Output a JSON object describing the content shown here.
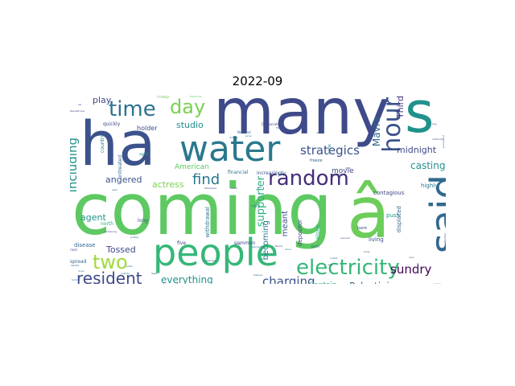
{
  "title": "2022-09",
  "words": [
    {
      "text": "coming",
      "color": "#5ec962"
    },
    {
      "text": "â",
      "color": "#6ccd5a"
    },
    {
      "text": "ha",
      "color": "#3b528b"
    },
    {
      "text": "many",
      "color": "#3e4a89"
    },
    {
      "text": "s",
      "color": "#21918c"
    },
    {
      "text": "people",
      "color": "#35b779"
    },
    {
      "text": "water",
      "color": "#2a788e"
    },
    {
      "text": "said",
      "color": "#31688e"
    },
    {
      "text": "electricity",
      "color": "#35b779"
    },
    {
      "text": "random",
      "color": "#472d7b"
    },
    {
      "text": "hour",
      "color": "#3b528b"
    },
    {
      "text": "time",
      "color": "#2c728e"
    },
    {
      "text": "day",
      "color": "#7ad151"
    },
    {
      "text": "two",
      "color": "#a0da39"
    },
    {
      "text": "resident",
      "color": "#3e4989"
    },
    {
      "text": "find",
      "color": "#2a788e"
    },
    {
      "text": "strategics",
      "color": "#3b528b"
    },
    {
      "text": "charging",
      "color": "#3b528b"
    },
    {
      "text": "including",
      "color": "#21918c"
    },
    {
      "text": "sundry",
      "color": "#440154"
    },
    {
      "text": "supporter",
      "color": "#2ab07f"
    },
    {
      "text": "Palestinians",
      "color": "#31688e"
    },
    {
      "text": "everything",
      "color": "#21918c"
    },
    {
      "text": "casting",
      "color": "#21918c"
    },
    {
      "text": "midnight",
      "color": "#3e4989"
    },
    {
      "text": "Third",
      "color": "#453781"
    },
    {
      "text": "Mavra",
      "color": "#31688e"
    },
    {
      "text": "actress",
      "color": "#7ad151"
    },
    {
      "text": "angered",
      "color": "#3b528b"
    },
    {
      "text": "studio",
      "color": "#21918c"
    },
    {
      "text": "play",
      "color": "#3e4989"
    },
    {
      "text": "Tossed",
      "color": "#3e4a89"
    },
    {
      "text": "agent",
      "color": "#21918c"
    },
    {
      "text": "meant",
      "color": "#3b528b"
    },
    {
      "text": "becoming",
      "color": "#2a788e"
    },
    {
      "text": "American",
      "color": "#5ec962"
    },
    {
      "text": "movie",
      "color": "#3e4989"
    },
    {
      "text": "Captain",
      "color": "#22a884"
    },
    {
      "text": "holder",
      "color": "#3e4a89"
    },
    {
      "text": "contagious",
      "color": "#3e4989"
    },
    {
      "text": "highly",
      "color": "#2a788e"
    },
    {
      "text": "displaced",
      "color": "#31688e"
    },
    {
      "text": "living",
      "color": "#3b528b"
    },
    {
      "text": "push",
      "color": "#21918c"
    },
    {
      "text": "alone",
      "color": "#2ab07f"
    },
    {
      "text": "depositor",
      "color": "#414487"
    },
    {
      "text": "rely",
      "color": "#21918c"
    },
    {
      "text": "long",
      "color": "#3b528b"
    },
    {
      "text": "disease",
      "color": "#31688e"
    },
    {
      "text": "north",
      "color": "#2ab07f"
    },
    {
      "text": "spread",
      "color": "#31688e"
    },
    {
      "text": "decade",
      "color": "#2a788e"
    },
    {
      "text": "five",
      "color": "#3e4989"
    },
    {
      "text": "river",
      "color": "#bddf26"
    },
    {
      "text": "withdrawal",
      "color": "#2a788e"
    },
    {
      "text": "common",
      "color": "#3e4989"
    },
    {
      "text": "quickly",
      "color": "#3e4989"
    },
    {
      "text": "country",
      "color": "#2a788e"
    },
    {
      "text": "untreated",
      "color": "#31688e"
    },
    {
      "text": "financial",
      "color": "#2a788e"
    },
    {
      "text": "increasingly",
      "color": "#3b528b"
    },
    {
      "text": "freeze",
      "color": "#31688e"
    },
    {
      "text": "crisis",
      "color": "#3e4989"
    },
    {
      "text": "bank",
      "color": "#3b528b"
    },
    {
      "text": "brink",
      "color": "#2a788e"
    },
    {
      "text": "Friday",
      "color": "#7ad151"
    },
    {
      "text": "port",
      "color": "#31688e"
    },
    {
      "text": "rival",
      "color": "#3e4989"
    },
    {
      "text": "agent",
      "color": "#21918c"
    },
    {
      "text": "Electricity",
      "color": "#5ec962"
    },
    {
      "text": "Republicans",
      "color": "#3e4989"
    },
    {
      "text": "National",
      "color": "#31688e"
    },
    {
      "text": "Democratic",
      "color": "#3e4989"
    },
    {
      "text": "authority",
      "color": "#3b528b"
    },
    {
      "text": "apologised",
      "color": "#2a788e"
    },
    {
      "text": "drifting",
      "color": "#31688e"
    },
    {
      "text": "gone",
      "color": "#2a788e"
    },
    {
      "text": "Witnesses",
      "color": "#3e4989"
    },
    {
      "text": "aware",
      "color": "#3b528b"
    },
    {
      "text": "seen",
      "color": "#31688e"
    },
    {
      "text": "containing",
      "color": "#3e4989"
    },
    {
      "text": "polling",
      "color": "#31688e"
    },
    {
      "text": "outside",
      "color": "#2a788e"
    },
    {
      "text": "least",
      "color": "#3e4989"
    },
    {
      "text": "senate",
      "color": "#31688e"
    },
    {
      "text": "festival",
      "color": "#2a788e"
    },
    {
      "text": "rescued",
      "color": "#3b528b"
    },
    {
      "text": "body",
      "color": "#31688e"
    },
    {
      "text": "outset",
      "color": "#2a788e"
    },
    {
      "text": "war",
      "color": "#3e4989"
    },
    {
      "text": "rack",
      "color": "#31688e"
    },
    {
      "text": "approach",
      "color": "#31688e"
    },
    {
      "text": "truly",
      "color": "#3e4989"
    },
    {
      "text": "Lebanese",
      "color": "#31688e"
    },
    {
      "text": "Beirut",
      "color": "#3e4989"
    },
    {
      "text": "shore",
      "color": "#2a788e"
    },
    {
      "text": "file",
      "color": "#3b528b"
    },
    {
      "text": "raw",
      "color": "#3e4989"
    },
    {
      "text": "trail",
      "color": "#2a788e"
    },
    {
      "text": "dead",
      "color": "#31688e"
    },
    {
      "text": "help",
      "color": "#3e4989"
    },
    {
      "text": "Leg",
      "color": "#3b528b"
    },
    {
      "text": "loose",
      "color": "#31688e"
    },
    {
      "text": "hand",
      "color": "#7ad151"
    },
    {
      "text": "covered",
      "color": "#2a788e"
    },
    {
      "text": "Weather",
      "color": "#3e4989"
    },
    {
      "text": "Stations",
      "color": "#31688e"
    },
    {
      "text": "behind",
      "color": "#2a788e"
    },
    {
      "text": "ski",
      "color": "#3e4989"
    },
    {
      "text": "parts",
      "color": "#31688e"
    },
    {
      "text": "done",
      "color": "#2a788e"
    }
  ]
}
